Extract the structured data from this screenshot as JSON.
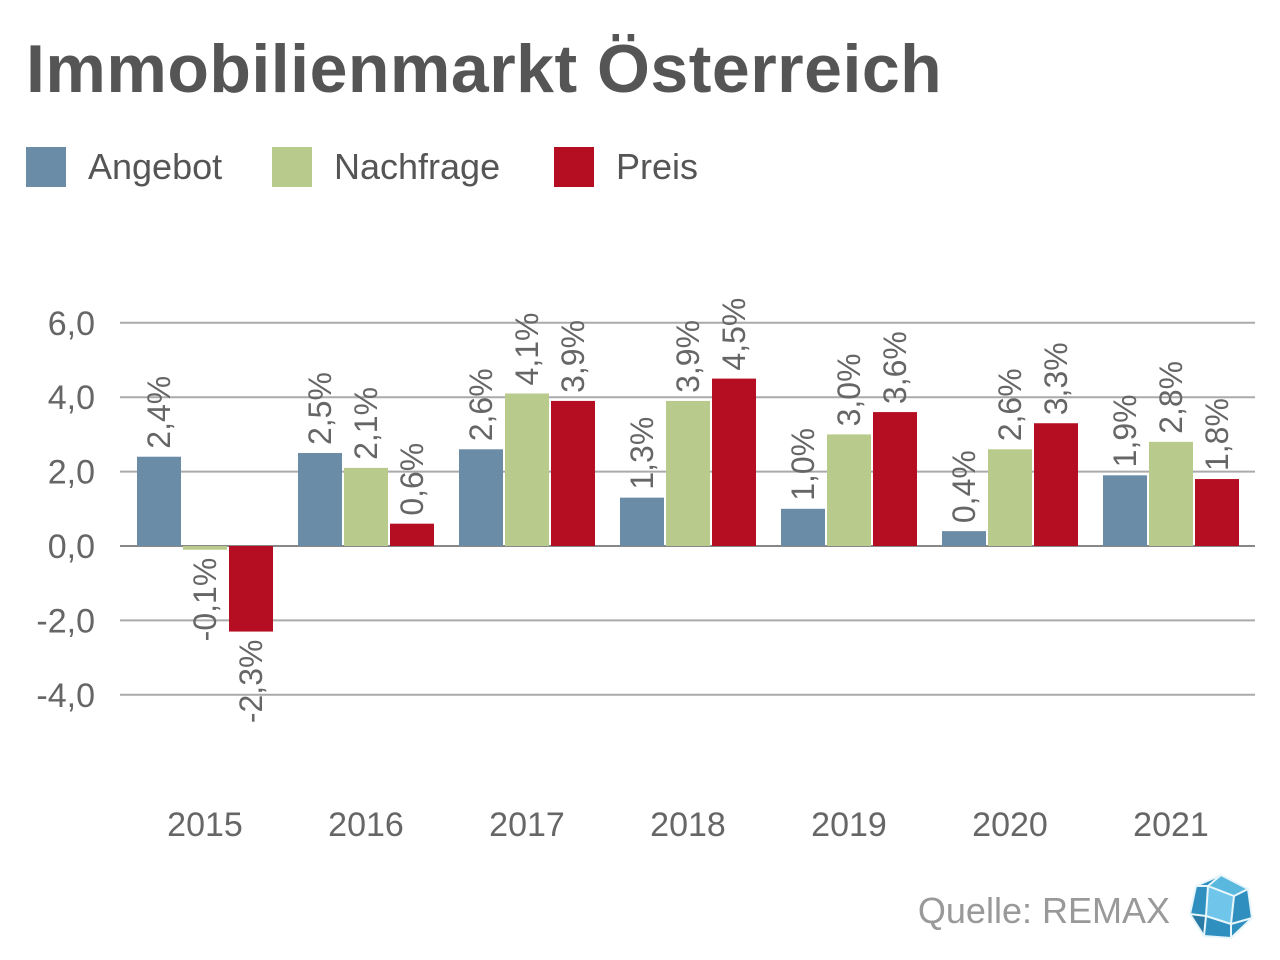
{
  "chart_data": {
    "type": "bar",
    "title": "Immobilienmarkt Österreich",
    "categories": [
      "2015",
      "2016",
      "2017",
      "2018",
      "2019",
      "2020",
      "2021"
    ],
    "series": [
      {
        "name": "Angebot",
        "color": "#6a8ca6",
        "values": [
          2.4,
          2.5,
          2.6,
          1.3,
          1.0,
          0.4,
          1.9
        ],
        "labels": [
          "2,4%",
          "2,5%",
          "2,6%",
          "1,3%",
          "1,0%",
          "0,4%",
          "1,9%"
        ]
      },
      {
        "name": "Nachfrage",
        "color": "#b8cb8c",
        "values": [
          -0.1,
          2.1,
          4.1,
          3.9,
          3.0,
          2.6,
          2.8
        ],
        "labels": [
          "-0,1%",
          "2,1%",
          "4,1%",
          "3,9%",
          "3,0%",
          "2,6%",
          "2,8%"
        ]
      },
      {
        "name": "Preis",
        "color": "#b50d22",
        "values": [
          -2.3,
          0.6,
          3.9,
          4.5,
          3.6,
          3.3,
          1.8
        ],
        "labels": [
          "-2,3%",
          "0,6%",
          "3,9%",
          "4,5%",
          "3,6%",
          "3,3%",
          "1,8%"
        ]
      }
    ],
    "ylim": [
      -4,
      6
    ],
    "yticks": [
      6,
      4,
      2,
      0,
      -2,
      -4
    ],
    "ytick_labels": [
      "6,0",
      "4,0",
      "2,0",
      "0,0",
      "-2,0",
      "-4,0"
    ],
    "grid": true,
    "legend_placement": "top-left",
    "xlabel": "",
    "ylabel": ""
  },
  "source": "Quelle: REMAX",
  "logo_icon": "remax-icosahedron-logo"
}
